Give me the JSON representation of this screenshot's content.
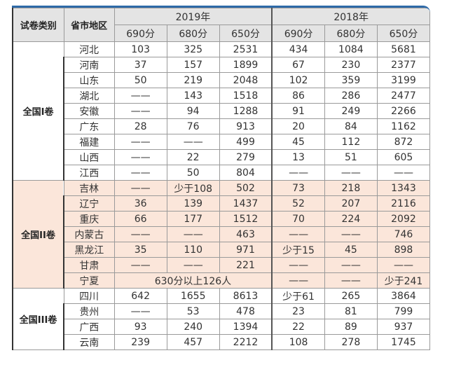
{
  "table": {
    "headers": {
      "type": "试卷类别",
      "province": "省市地区",
      "year_2019": "2019年",
      "year_2018": "2018年",
      "scores_2019": [
        "690分",
        "680分",
        "650分"
      ],
      "scores_2018": [
        "690分",
        "680分",
        "650分"
      ]
    },
    "colors": {
      "header_bg": "#e4e4e4",
      "group2_bg": "#fbe6da",
      "top_border": "#2e6aa8"
    },
    "groups": [
      {
        "type": "全国I卷",
        "rows": [
          {
            "province": "河北",
            "v2019": [
              "103",
              "325",
              "2531"
            ],
            "v2018": [
              "434",
              "1084",
              "5681"
            ]
          },
          {
            "province": "河南",
            "v2019": [
              "37",
              "157",
              "1899"
            ],
            "v2018": [
              "67",
              "230",
              "2377"
            ]
          },
          {
            "province": "山东",
            "v2019": [
              "50",
              "219",
              "2048"
            ],
            "v2018": [
              "102",
              "359",
              "3199"
            ]
          },
          {
            "province": "湖北",
            "v2019": [
              "——",
              "143",
              "1518"
            ],
            "v2018": [
              "86",
              "286",
              "2477"
            ]
          },
          {
            "province": "安徽",
            "v2019": [
              "——",
              "94",
              "1288"
            ],
            "v2018": [
              "91",
              "249",
              "2266"
            ]
          },
          {
            "province": "广东",
            "v2019": [
              "28",
              "76",
              "913"
            ],
            "v2018": [
              "20",
              "84",
              "1162"
            ]
          },
          {
            "province": "福建",
            "v2019": [
              "——",
              "——",
              "499"
            ],
            "v2018": [
              "45",
              "112",
              "872"
            ]
          },
          {
            "province": "山西",
            "v2019": [
              "——",
              "22",
              "279"
            ],
            "v2018": [
              "13",
              "51",
              "605"
            ]
          },
          {
            "province": "江西",
            "v2019": [
              "——",
              "50",
              "804"
            ],
            "v2018": [
              "——",
              "——",
              "——"
            ]
          }
        ]
      },
      {
        "type": "全国II卷",
        "rows": [
          {
            "province": "吉林",
            "v2019": [
              "——",
              "少于108",
              "502"
            ],
            "v2018": [
              "73",
              "218",
              "1343"
            ]
          },
          {
            "province": "辽宁",
            "v2019": [
              "36",
              "139",
              "1437"
            ],
            "v2018": [
              "52",
              "207",
              "2116"
            ]
          },
          {
            "province": "重庆",
            "v2019": [
              "66",
              "177",
              "1512"
            ],
            "v2018": [
              "70",
              "224",
              "2092"
            ]
          },
          {
            "province": "内蒙古",
            "v2019": [
              "——",
              "——",
              "463"
            ],
            "v2018": [
              "——",
              "——",
              "746"
            ]
          },
          {
            "province": "黑龙江",
            "v2019": [
              "35",
              "110",
              "971"
            ],
            "v2018": [
              "少于15",
              "45",
              "898"
            ]
          },
          {
            "province": "甘肃",
            "v2019": [
              "——",
              "——",
              "221"
            ],
            "v2018": [
              "——",
              "——",
              "——"
            ]
          },
          {
            "province": "宁夏",
            "merged2019": "630分以上126人",
            "v2018": [
              "——",
              "——",
              "少于241"
            ]
          }
        ]
      },
      {
        "type": "全国III卷",
        "rows": [
          {
            "province": "四川",
            "v2019": [
              "642",
              "1655",
              "8613"
            ],
            "v2018": [
              "少于61",
              "265",
              "3864"
            ]
          },
          {
            "province": "贵州",
            "v2019": [
              "——",
              "53",
              "478"
            ],
            "v2018": [
              "23",
              "81",
              "799"
            ]
          },
          {
            "province": "广西",
            "v2019": [
              "93",
              "240",
              "1394"
            ],
            "v2018": [
              "22",
              "89",
              "937"
            ]
          },
          {
            "province": "云南",
            "v2019": [
              "239",
              "457",
              "2212"
            ],
            "v2018": [
              "108",
              "278",
              "1745"
            ]
          }
        ]
      }
    ]
  }
}
